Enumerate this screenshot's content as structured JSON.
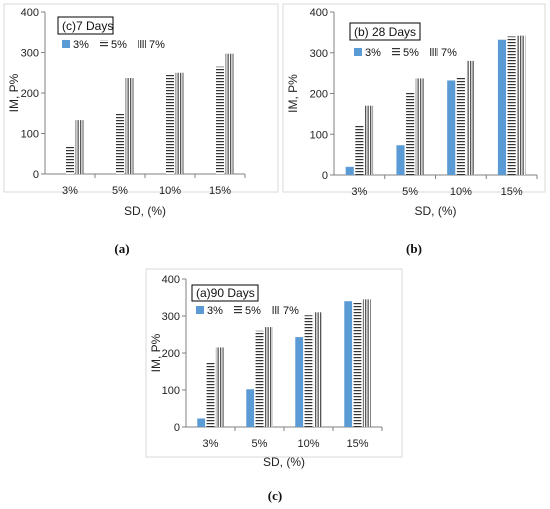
{
  "chart_data": [
    {
      "type": "bar",
      "title": "(c)7 Days",
      "caption": "(a)",
      "xlabel": "SD, (%)",
      "ylabel": "IM, P%",
      "ylim": [
        0,
        400
      ],
      "yticks": [
        0,
        100,
        200,
        300,
        400
      ],
      "categories": [
        "3%",
        "5%",
        "10%",
        "15%"
      ],
      "legend": "top-left",
      "series": [
        {
          "name": "3%",
          "values": [
            0,
            0,
            0,
            0
          ]
        },
        {
          "name": "5%",
          "values": [
            70,
            150,
            245,
            265
          ]
        },
        {
          "name": "7%",
          "values": [
            133,
            237,
            250,
            297
          ]
        }
      ]
    },
    {
      "type": "bar",
      "title": "(b) 28 Days",
      "caption": "(b)",
      "xlabel": "SD, (%)",
      "ylabel": "IM, P%",
      "ylim": [
        0,
        400
      ],
      "yticks": [
        0,
        100,
        200,
        300,
        400
      ],
      "categories": [
        "3%",
        "5%",
        "10%",
        "15%"
      ],
      "legend": "top-left",
      "series": [
        {
          "name": "3%",
          "values": [
            20,
            73,
            232,
            332
          ]
        },
        {
          "name": "5%",
          "values": [
            123,
            202,
            240,
            340
          ]
        },
        {
          "name": "7%",
          "values": [
            170,
            237,
            280,
            342
          ]
        }
      ]
    },
    {
      "type": "bar",
      "title": "(a)90 Days",
      "caption": "(c)",
      "xlabel": "SD, (%)",
      "ylabel": "IM, P%",
      "ylim": [
        0,
        400
      ],
      "yticks": [
        0,
        100,
        200,
        300,
        400
      ],
      "categories": [
        "3%",
        "5%",
        "10%",
        "15%"
      ],
      "legend": "top-left",
      "series": [
        {
          "name": "3%",
          "values": [
            23,
            102,
            243,
            340
          ]
        },
        {
          "name": "5%",
          "values": [
            173,
            260,
            302,
            337
          ]
        },
        {
          "name": "7%",
          "values": [
            215,
            270,
            310,
            345
          ]
        }
      ]
    }
  ],
  "colors": {
    "series_3": "#5b9bd5",
    "series_5": "#333333",
    "series_7": "#555555",
    "frame": "#d9d9d9",
    "axis": "#808080"
  }
}
